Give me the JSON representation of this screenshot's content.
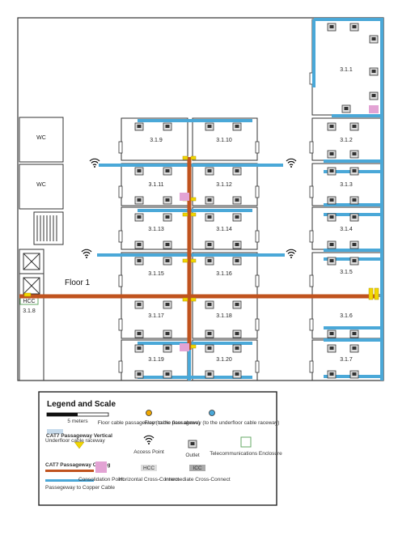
{
  "floor_label": "Floor 1",
  "rooms": {
    "r311": "3.1.1",
    "r312": "3.1.2",
    "r313": "3.1.3",
    "r314": "3.1.4",
    "r315": "3.1.5",
    "r316": "3.1.6",
    "r317": "3.1.7",
    "r318": "3.1.8",
    "r319": "3.1.9",
    "r3110": "3.1.10",
    "r3111": "3.1.11",
    "r3112": "3.1.12",
    "r3113": "3.1.13",
    "r3114": "3.1.14",
    "r3115": "3.1.15",
    "r3116": "3.1.16",
    "r3117": "3.1.17",
    "r3118": "3.1.18",
    "r3119": "3.1.19",
    "r3120": "3.1.20",
    "wc1": "WC",
    "wc2": "WC"
  },
  "hcc_tag": "HCC",
  "colors": {
    "raceway": "#4aa8d8",
    "cat7": "#c0531e",
    "passageway_marker": "#f2d600",
    "consolidation": "#e3a3d4",
    "wall": "#333333"
  },
  "legend": {
    "title": "Legend and Scale",
    "scale": "5 meters",
    "underfloor": "Underfloor cable raceway",
    "cat7_vertical": "CAT7 Passageway Vertical",
    "cat7_ceiling": "CAT7 Passageway Ceiling",
    "copper": "Passegeway to Copper Cable",
    "floor_pass": "Floor cable passageway (to the floor above)",
    "access_point": "Access Point",
    "consolidation": "Consolidation Point",
    "hcc_short": "HCC",
    "hcc": "Horizontal Cross-Connect",
    "under_pass": "Floor cable passageway (to the underfloor cable raceway)",
    "outlet": "Outlet",
    "icc_short": "ICC",
    "icc": "Intermediate Cross-Connect",
    "telecom": "Telecommunications Enclosure"
  }
}
